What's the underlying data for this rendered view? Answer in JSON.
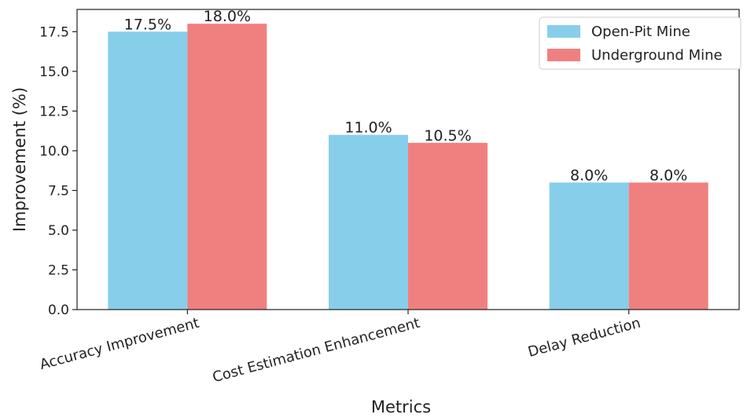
{
  "chart_data": {
    "type": "bar",
    "categories": [
      "Accuracy Improvement",
      "Cost Estimation Enhancement",
      "Delay Reduction"
    ],
    "series": [
      {
        "name": "Open-Pit Mine",
        "values": [
          17.5,
          11.0,
          8.0
        ],
        "labels": [
          "17.5%",
          "11.0%",
          "8.0%"
        ],
        "color": "#87ceeb"
      },
      {
        "name": "Underground Mine",
        "values": [
          18.0,
          10.5,
          8.0
        ],
        "labels": [
          "18.0%",
          "10.5%",
          "8.0%"
        ],
        "color": "#f08080"
      }
    ],
    "xlabel": "Metrics",
    "ylabel": "Improvement (%)",
    "ylim": [
      0,
      18.9
    ],
    "yticks": [
      "0.0",
      "2.5",
      "5.0",
      "7.5",
      "10.0",
      "12.5",
      "15.0",
      "17.5"
    ],
    "grid": false,
    "legend_position": "top-right"
  }
}
